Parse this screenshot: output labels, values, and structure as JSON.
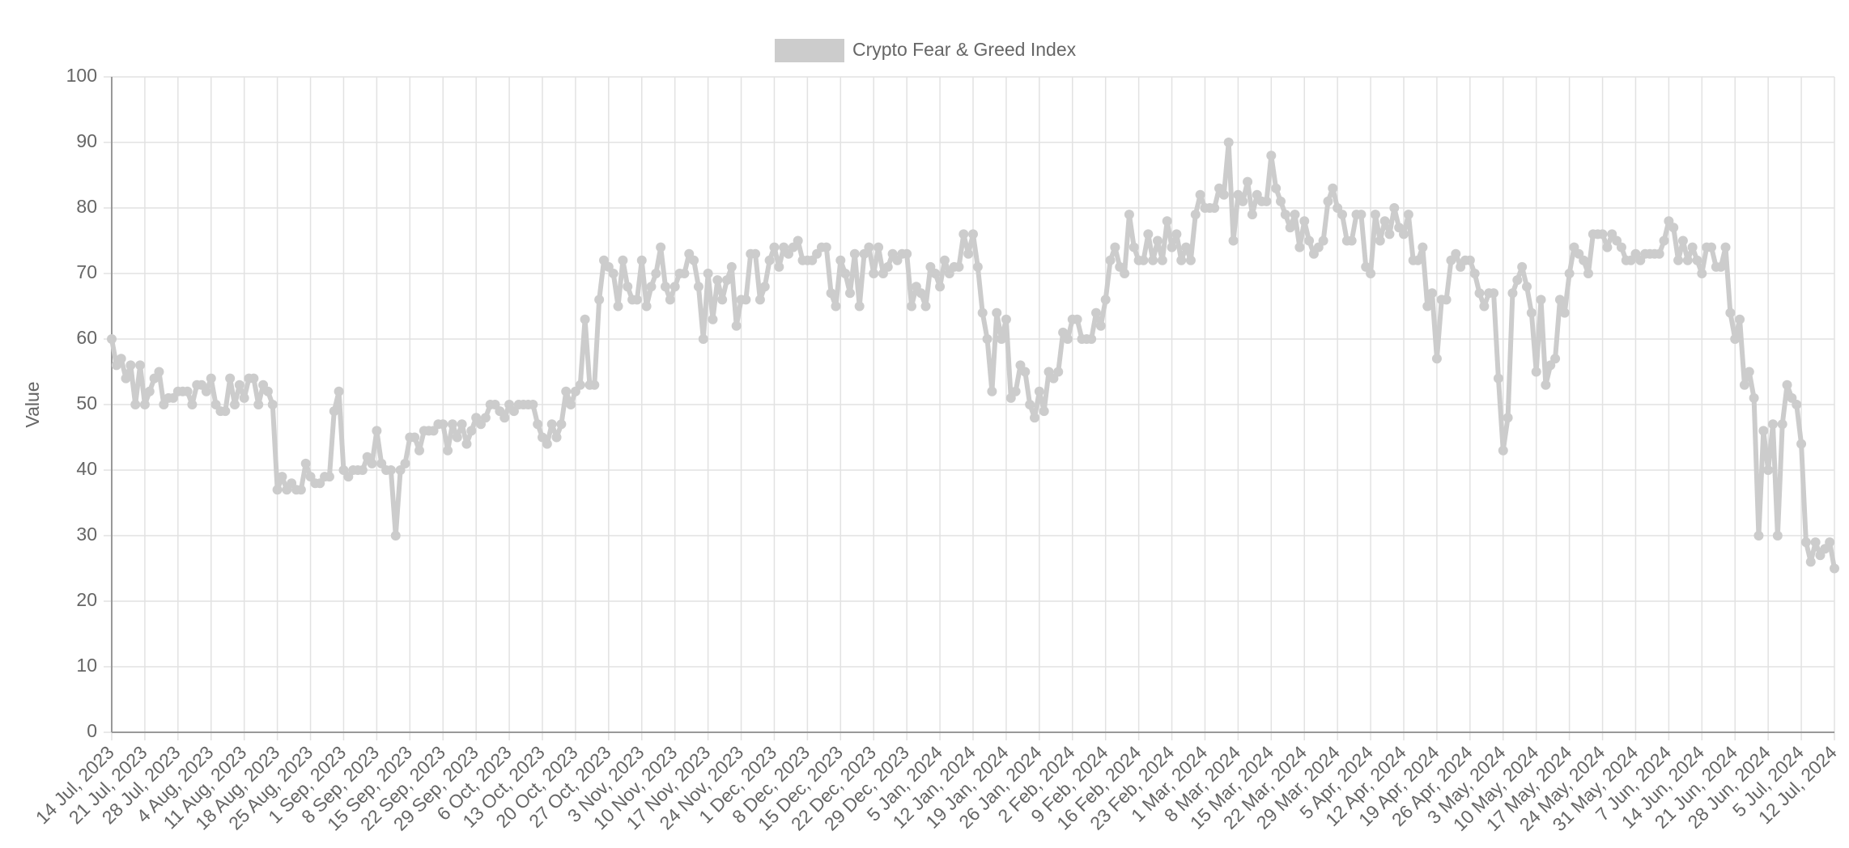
{
  "chart_data": {
    "type": "line",
    "y_label": "Value",
    "ylim": [
      0,
      100
    ],
    "yticks": [
      0,
      10,
      20,
      30,
      40,
      50,
      60,
      70,
      80,
      90,
      100
    ],
    "grid": true,
    "legend": "top",
    "categories": [
      "14 Jul, 2023",
      null,
      null,
      null,
      null,
      null,
      null,
      "21 Jul, 2023",
      null,
      null,
      null,
      null,
      null,
      null,
      "28 Jul, 2023",
      null,
      null,
      null,
      null,
      null,
      null,
      "4 Aug, 2023",
      null,
      null,
      null,
      null,
      null,
      null,
      "11 Aug, 2023",
      null,
      null,
      null,
      null,
      null,
      null,
      "18 Aug, 2023",
      null,
      null,
      null,
      null,
      null,
      null,
      "25 Aug, 2023",
      null,
      null,
      null,
      null,
      null,
      null,
      "1 Sep, 2023",
      null,
      null,
      null,
      null,
      null,
      null,
      "8 Sep, 2023",
      null,
      null,
      null,
      null,
      null,
      null,
      "15 Sep, 2023",
      null,
      null,
      null,
      null,
      null,
      null,
      "22 Sep, 2023",
      null,
      null,
      null,
      null,
      null,
      null,
      "29 Sep, 2023",
      null,
      null,
      null,
      null,
      null,
      null,
      "6 Oct, 2023",
      null,
      null,
      null,
      null,
      null,
      null,
      "13 Oct, 2023",
      null,
      null,
      null,
      null,
      null,
      null,
      "20 Oct, 2023",
      null,
      null,
      null,
      null,
      null,
      null,
      "27 Oct, 2023",
      null,
      null,
      null,
      null,
      null,
      null,
      "3 Nov, 2023",
      null,
      null,
      null,
      null,
      null,
      null,
      "10 Nov, 2023",
      null,
      null,
      null,
      null,
      null,
      null,
      "17 Nov, 2023",
      null,
      null,
      null,
      null,
      null,
      null,
      "24 Nov, 2023",
      null,
      null,
      null,
      null,
      null,
      null,
      "1 Dec, 2023",
      null,
      null,
      null,
      null,
      null,
      null,
      "8 Dec, 2023",
      null,
      null,
      null,
      null,
      null,
      null,
      "15 Dec, 2023",
      null,
      null,
      null,
      null,
      null,
      null,
      "22 Dec, 2023",
      null,
      null,
      null,
      null,
      null,
      null,
      "29 Dec, 2023",
      null,
      null,
      null,
      null,
      null,
      null,
      "5 Jan, 2024",
      null,
      null,
      null,
      null,
      null,
      null,
      "12 Jan, 2024",
      null,
      null,
      null,
      null,
      null,
      null,
      "19 Jan, 2024",
      null,
      null,
      null,
      null,
      null,
      null,
      "26 Jan, 2024",
      null,
      null,
      null,
      null,
      null,
      null,
      "2 Feb, 2024",
      null,
      null,
      null,
      null,
      null,
      null,
      "9 Feb, 2024",
      null,
      null,
      null,
      null,
      null,
      null,
      "16 Feb, 2024",
      null,
      null,
      null,
      null,
      null,
      null,
      "23 Feb, 2024",
      null,
      null,
      null,
      null,
      null,
      null,
      "1 Mar, 2024",
      null,
      null,
      null,
      null,
      null,
      null,
      "8 Mar, 2024",
      null,
      null,
      null,
      null,
      null,
      null,
      "15 Mar, 2024",
      null,
      null,
      null,
      null,
      null,
      null,
      "22 Mar, 2024",
      null,
      null,
      null,
      null,
      null,
      null,
      "29 Mar, 2024",
      null,
      null,
      null,
      null,
      null,
      null,
      "5 Apr, 2024",
      null,
      null,
      null,
      null,
      null,
      null,
      "12 Apr, 2024",
      null,
      null,
      null,
      null,
      null,
      null,
      "19 Apr, 2024",
      null,
      null,
      null,
      null,
      null,
      null,
      "26 Apr, 2024",
      null,
      null,
      null,
      null,
      null,
      null,
      "3 May, 2024",
      null,
      null,
      null,
      null,
      null,
      null,
      "10 May, 2024",
      null,
      null,
      null,
      null,
      null,
      null,
      "17 May, 2024",
      null,
      null,
      null,
      null,
      null,
      null,
      "24 May, 2024",
      null,
      null,
      null,
      null,
      null,
      null,
      "31 May, 2024",
      null,
      null,
      null,
      null,
      null,
      null,
      "7 Jun, 2024",
      null,
      null,
      null,
      null,
      null,
      null,
      "14 Jun, 2024",
      null,
      null,
      null,
      null,
      null,
      null,
      "21 Jun, 2024",
      null,
      null,
      null,
      null,
      null,
      null,
      "28 Jun, 2024",
      null,
      null,
      null,
      null,
      null,
      null,
      "5 Jul, 2024",
      null,
      null,
      null,
      null,
      null,
      null,
      "12 Jul, 2024"
    ],
    "series": [
      {
        "name": "Crypto Fear & Greed Index",
        "color": "#cccccc",
        "values": [
          60,
          56,
          57,
          54,
          56,
          50,
          56,
          50,
          52,
          54,
          55,
          50,
          51,
          51,
          52,
          52,
          52,
          50,
          53,
          53,
          52,
          54,
          50,
          49,
          49,
          54,
          50,
          53,
          51,
          54,
          54,
          50,
          53,
          52,
          50,
          37,
          39,
          37,
          38,
          37,
          37,
          41,
          39,
          38,
          38,
          39,
          39,
          49,
          52,
          40,
          39,
          40,
          40,
          40,
          42,
          41,
          46,
          41,
          40,
          40,
          30,
          40,
          41,
          45,
          45,
          43,
          46,
          46,
          46,
          47,
          47,
          43,
          47,
          45,
          47,
          44,
          46,
          48,
          47,
          48,
          50,
          50,
          49,
          48,
          50,
          49,
          50,
          50,
          50,
          50,
          47,
          45,
          44,
          47,
          45,
          47,
          52,
          50,
          52,
          53,
          63,
          53,
          53,
          66,
          72,
          71,
          70,
          65,
          72,
          68,
          66,
          66,
          72,
          65,
          68,
          70,
          74,
          68,
          66,
          68,
          70,
          70,
          73,
          72,
          68,
          60,
          70,
          63,
          69,
          66,
          69,
          71,
          62,
          66,
          66,
          73,
          73,
          66,
          68,
          72,
          74,
          71,
          74,
          73,
          74,
          75,
          72,
          72,
          72,
          73,
          74,
          74,
          67,
          65,
          72,
          70,
          67,
          73,
          65,
          73,
          74,
          70,
          74,
          70,
          71,
          73,
          72,
          73,
          73,
          65,
          68,
          67,
          65,
          71,
          70,
          68,
          72,
          70,
          71,
          71,
          76,
          73,
          76,
          71,
          64,
          60,
          52,
          64,
          60,
          63,
          51,
          52,
          56,
          55,
          50,
          48,
          52,
          49,
          55,
          54,
          55,
          61,
          60,
          63,
          63,
          60,
          60,
          60,
          64,
          62,
          66,
          72,
          74,
          71,
          70,
          79,
          74,
          72,
          72,
          76,
          72,
          75,
          72,
          78,
          74,
          76,
          72,
          74,
          72,
          79,
          82,
          80,
          80,
          80,
          83,
          82,
          90,
          75,
          82,
          81,
          84,
          79,
          82,
          81,
          81,
          88,
          83,
          81,
          79,
          77,
          79,
          74,
          78,
          75,
          73,
          74,
          75,
          81,
          83,
          80,
          79,
          75,
          75,
          79,
          79,
          71,
          70,
          79,
          75,
          78,
          76,
          80,
          77,
          76,
          79,
          72,
          72,
          74,
          65,
          67,
          57,
          66,
          66,
          72,
          73,
          71,
          72,
          72,
          70,
          67,
          65,
          67,
          67,
          54,
          43,
          48,
          67,
          69,
          71,
          68,
          64,
          55,
          66,
          53,
          56,
          57,
          66,
          64,
          70,
          74,
          73,
          72,
          70,
          76,
          76,
          76,
          74,
          76,
          75,
          74,
          72,
          72,
          73,
          72,
          73,
          73,
          73,
          73,
          75,
          78,
          77,
          72,
          75,
          72,
          74,
          72,
          70,
          74,
          74,
          71,
          71,
          74,
          64,
          60,
          63,
          53,
          55,
          51,
          30,
          46,
          40,
          47,
          30,
          47,
          53,
          51,
          50,
          44,
          29,
          26,
          29,
          27,
          28,
          29,
          25
        ]
      }
    ]
  }
}
